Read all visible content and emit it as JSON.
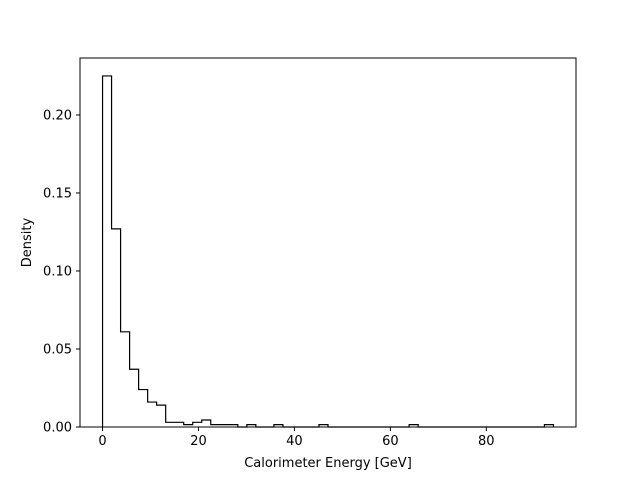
{
  "chart_data": {
    "type": "bar",
    "histtype": "step",
    "title": "",
    "xlabel": "Calorimeter Energy [GeV]",
    "ylabel": "Density",
    "xlim": [
      -4.7,
      98.7
    ],
    "ylim": [
      0,
      0.2365
    ],
    "grid": false,
    "x_ticks": [
      0,
      20,
      40,
      60,
      80
    ],
    "y_ticks": [
      0.0,
      0.05,
      0.1,
      0.15,
      0.2
    ],
    "y_tick_labels": [
      "0.00",
      "0.05",
      "0.10",
      "0.15",
      "0.20"
    ],
    "bin_width": 1.88,
    "bin_start": 0,
    "values": [
      0.225,
      0.127,
      0.061,
      0.037,
      0.024,
      0.016,
      0.014,
      0.003,
      0.003,
      0.0015,
      0.003,
      0.0045,
      0.0015,
      0.0015,
      0.0015,
      0,
      0.0015,
      0,
      0,
      0.0015,
      0,
      0,
      0,
      0,
      0.0015,
      0,
      0,
      0,
      0,
      0,
      0,
      0,
      0,
      0,
      0.0015,
      0,
      0,
      0,
      0,
      0,
      0,
      0,
      0,
      0,
      0,
      0,
      0,
      0,
      0,
      0.0015
    ]
  }
}
